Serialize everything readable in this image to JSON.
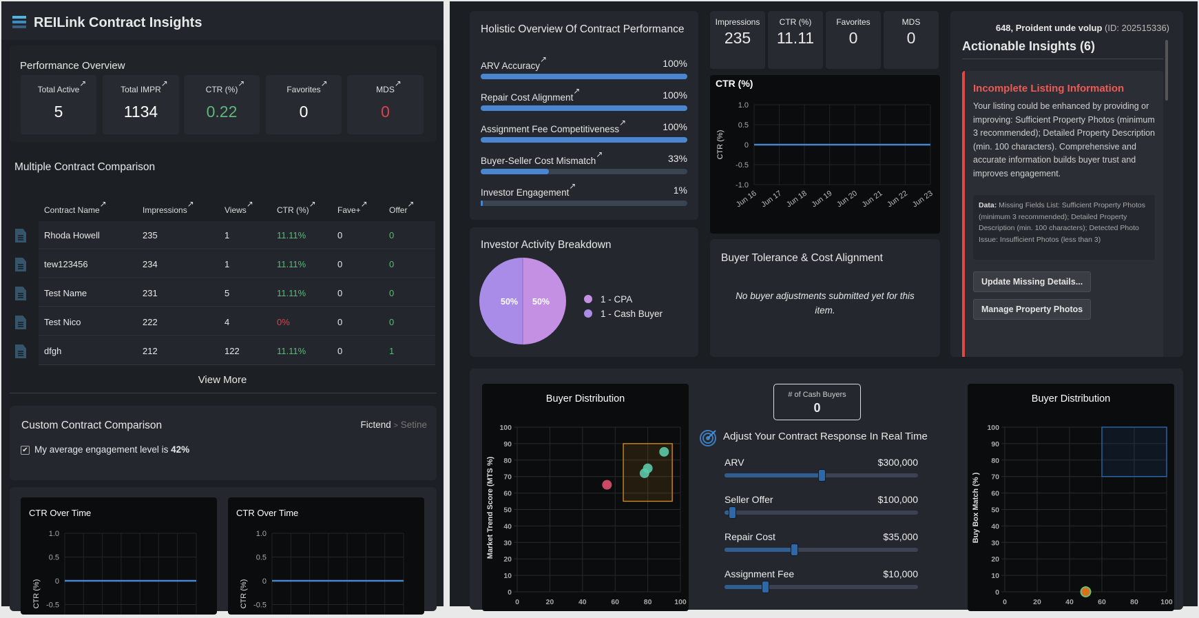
{
  "header": {
    "title": "REILink Contract Insights",
    "menu_icon": "hamburger-icon"
  },
  "performance": {
    "title": "Performance Overview",
    "stats": [
      {
        "label": "Total Active",
        "value": "5",
        "color": "#ffffff"
      },
      {
        "label": "Total IMPR",
        "value": "1134",
        "color": "#ffffff"
      },
      {
        "label": "CTR (%)",
        "value": "0.22",
        "color": "#5fb87a"
      },
      {
        "label": "Favorites",
        "value": "0",
        "color": "#ffffff"
      },
      {
        "label": "MDS",
        "value": "0",
        "color": "#d9434f"
      }
    ]
  },
  "comparison": {
    "title": "Multiple Contract Comparison",
    "columns": [
      "Contract Name",
      "Impressions",
      "Views",
      "CTR (%)",
      "Fave+",
      "Offer"
    ],
    "rows": [
      {
        "name": "Rhoda Howell",
        "impressions": "235",
        "views": "1",
        "ctr": "11.11%",
        "fave": "0",
        "offer": "0"
      },
      {
        "name": "tew123456",
        "impressions": "234",
        "views": "1",
        "ctr": "11.11%",
        "fave": "0",
        "offer": "0"
      },
      {
        "name": "Test Name",
        "impressions": "231",
        "views": "5",
        "ctr": "11.11%",
        "fave": "0",
        "offer": "0"
      },
      {
        "name": "Test Nico",
        "impressions": "222",
        "views": "4",
        "ctr": "0%",
        "fave": "0",
        "offer": "0"
      },
      {
        "name": "dfgh",
        "impressions": "212",
        "views": "122",
        "ctr": "11.11%",
        "fave": "0",
        "offer": "1"
      }
    ],
    "view_more": "View More"
  },
  "custom": {
    "title": "Custom Contract Comparison",
    "breadcrumb": [
      "Fictend",
      ">",
      "Setine"
    ],
    "checkbox_label": "My average engagement level is ",
    "checkbox_value": "42%",
    "checked": true
  },
  "holistic": {
    "title": "Holistic Overview Of Contract Performance",
    "metrics": [
      {
        "label": "ARV Accuracy",
        "value": "100%",
        "percent": 100
      },
      {
        "label": "Repair Cost Alignment",
        "value": "100%",
        "percent": 100
      },
      {
        "label": "Assignment Fee Competitiveness",
        "value": "100%",
        "percent": 100
      },
      {
        "label": "Buyer-Seller Cost Mismatch",
        "value": "33%",
        "percent": 33
      },
      {
        "label": "Investor Engagement",
        "value": "1%",
        "percent": 1
      }
    ]
  },
  "investor": {
    "title": "Investor Activity Breakdown",
    "slices": [
      {
        "label": "1 - CPA",
        "value": 50,
        "pct_label": "50%",
        "color": "#c490e4"
      },
      {
        "label": "1 - Cash Buyer",
        "value": 50,
        "pct_label": "50%",
        "color": "#a98ce8"
      }
    ]
  },
  "listing_stats": [
    {
      "label": "Impressions",
      "value": "235"
    },
    {
      "label": "CTR (%)",
      "value": "11.11"
    },
    {
      "label": "Favorites",
      "value": "0"
    },
    {
      "label": "MDS",
      "value": "0"
    }
  ],
  "tolerance": {
    "title": "Buyer Tolerance & Cost Alignment",
    "empty": "No buyer adjustments submitted yet for this item."
  },
  "insights": {
    "property": "648, Proident unde volup",
    "id_text": "(ID: 202515336)",
    "title": "Actionable Insights (6)",
    "card": {
      "title": "Incomplete Listing Information",
      "body": "Your listing could be enhanced by providing or improving: Sufficient Property Photos (minimum 3 recommended); Detailed Property Description (min. 100 characters). Comprehensive and accurate information builds buyer trust and improves engagement.",
      "data_label": "Data:",
      "data_text": " Missing Fields List: Sufficient Property Photos (minimum 3 recommended); Detailed Property Description (min. 100 characters); Detected Photo Issue: Insufficient Photos (less than 3)",
      "buttons": [
        "Update Missing Details...",
        "Manage Property Photos"
      ]
    },
    "accent": "#e04848"
  },
  "cash_buyers": {
    "label": "# of Cash Buyers",
    "value": "0"
  },
  "adjust": {
    "title": "Adjust Your Contract Response In Real Time",
    "icon": "target-icon",
    "sliders": [
      {
        "label": "ARV",
        "value": "$300,000",
        "percent": 50
      },
      {
        "label": "Seller Offer",
        "value": "$100,000",
        "percent": 4
      },
      {
        "label": "Repair Cost",
        "value": "$35,000",
        "percent": 36
      },
      {
        "label": "Assignment Fee",
        "value": "$10,000",
        "percent": 21
      }
    ]
  },
  "chart_data": [
    {
      "id": "ctr-main",
      "type": "line",
      "title": "CTR (%)",
      "ylabel": "CTR (%)",
      "categories": [
        "Jun 16",
        "Jun 17",
        "Jun 18",
        "Jun 19",
        "Jun 20",
        "Jun 21",
        "Jun 22",
        "Jun 23"
      ],
      "values": [
        0,
        0,
        0,
        0,
        0,
        0,
        0,
        0
      ],
      "ylim": [
        -1,
        1
      ],
      "yticks": [
        "1.0",
        "0.5",
        "0",
        "-0.5",
        "-1.0"
      ],
      "grid": true,
      "color": "#4a86d0"
    },
    {
      "id": "ctr-a",
      "type": "line",
      "title": "CTR Over Time",
      "ylabel": "CTR (%)",
      "values": [
        0,
        0,
        0,
        0,
        0,
        0,
        0,
        0
      ],
      "ylim": [
        -1,
        1
      ],
      "yticks": [
        "1.0",
        "0.5",
        "0",
        "-0.5"
      ],
      "grid": true,
      "color": "#4a86d0"
    },
    {
      "id": "ctr-b",
      "type": "line",
      "title": "CTR Over Time",
      "ylabel": "CTR (%)",
      "values": [
        0,
        0,
        0,
        0,
        0,
        0,
        0,
        0
      ],
      "ylim": [
        -1,
        1
      ],
      "yticks": [
        "1.0",
        "0.5",
        "0",
        "-0.5"
      ],
      "grid": true,
      "color": "#4a86d0"
    },
    {
      "id": "scatter-a",
      "type": "scatter",
      "title": "Buyer Distribution",
      "ylabel": "Market Trend Score (MTS %)",
      "xlim": [
        0,
        100
      ],
      "ylim": [
        0,
        100
      ],
      "xticks": [
        "0",
        "20",
        "40",
        "60",
        "80",
        "100"
      ],
      "yticks": [
        "100",
        "90",
        "80",
        "70",
        "60",
        "50",
        "40",
        "30",
        "20",
        "10",
        "0"
      ],
      "points": [
        {
          "x": 55,
          "y": 65,
          "color": "#e0506e"
        },
        {
          "x": 78,
          "y": 72,
          "color": "#5cc9a7"
        },
        {
          "x": 80,
          "y": 75,
          "color": "#5cc9a7"
        },
        {
          "x": 90,
          "y": 85,
          "color": "#5cc9a7"
        }
      ],
      "region": {
        "x": [
          65,
          95
        ],
        "y": [
          55,
          90
        ],
        "color": "#d9931c"
      },
      "grid": true
    },
    {
      "id": "scatter-b",
      "type": "scatter",
      "title": "Buyer Distribution",
      "ylabel": "Buy Box Match (% )",
      "xlim": [
        0,
        100
      ],
      "ylim": [
        0,
        100
      ],
      "xticks": [
        "0",
        "20",
        "40",
        "60",
        "80",
        "100"
      ],
      "yticks": [
        "100",
        "90",
        "80",
        "70",
        "60",
        "50",
        "40",
        "30",
        "20",
        "10",
        "0"
      ],
      "points": [
        {
          "x": 50,
          "y": 0,
          "color": "#f07a1a"
        }
      ],
      "region": {
        "x": [
          60,
          100
        ],
        "y": [
          70,
          100
        ],
        "color": "#2a6fb8"
      },
      "grid": true
    }
  ]
}
